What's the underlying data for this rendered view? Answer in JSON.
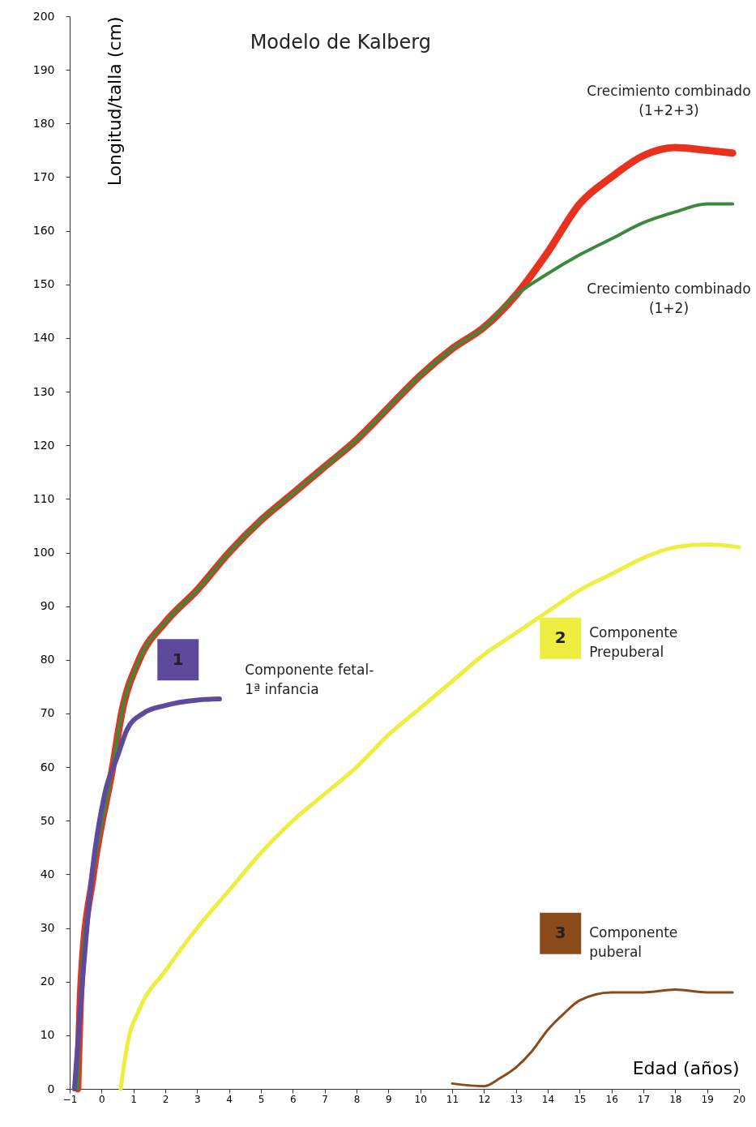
{
  "chart_data": {
    "type": "line",
    "title": "Modelo de Kalberg",
    "xlabel": "Edad (años)",
    "ylabel": "Longitud/talla (cm)",
    "xlim": [
      -1,
      20
    ],
    "ylim": [
      0,
      200
    ],
    "xticks": [
      -1,
      0,
      1,
      2,
      3,
      4,
      5,
      6,
      7,
      8,
      9,
      10,
      11,
      12,
      13,
      14,
      15,
      16,
      17,
      18,
      19,
      20
    ],
    "yticks": [
      0,
      10,
      20,
      30,
      40,
      50,
      60,
      70,
      80,
      90,
      100,
      110,
      120,
      130,
      140,
      150,
      160,
      170,
      180,
      190,
      200
    ],
    "grid": false,
    "legend": false,
    "marker": "none",
    "line_style": "solid",
    "series": [
      {
        "name": "Crecimiento combinado\n(1+2+3)",
        "color": "#e8321e",
        "x": [
          -0.75,
          -0.64,
          -0.26,
          0.35,
          0.63,
          1.18,
          2,
          3,
          4,
          5,
          6,
          7,
          8,
          9,
          10,
          11,
          12,
          13,
          14,
          15,
          16,
          17,
          18,
          19,
          19.8
        ],
        "values": [
          0,
          20,
          40,
          60,
          70,
          80,
          87,
          93,
          100,
          106,
          111,
          116,
          121,
          127,
          133,
          138,
          142,
          148,
          156,
          165,
          170,
          174,
          175.5,
          175,
          174.5
        ]
      },
      {
        "name": "Crecimiento combinado\n(1+2)",
        "color": "#3a8a3a",
        "x": [
          -0.75,
          -0.64,
          -0.26,
          0.35,
          0.63,
          1.18,
          2,
          3,
          4,
          5,
          6,
          7,
          8,
          9,
          10,
          11,
          12,
          13,
          14,
          15,
          16,
          17,
          18,
          19,
          19.8
        ],
        "values": [
          0,
          20,
          40,
          60,
          70,
          80,
          87,
          93,
          100,
          106,
          111,
          116,
          121,
          127,
          133,
          138,
          142,
          148,
          152,
          155.5,
          158.5,
          161.5,
          163.5,
          165,
          165
        ]
      },
      {
        "name": "Componente fetal-\n1ª infancia",
        "color": "#5e4a9c",
        "x": [
          -0.85,
          -0.6,
          -0.3,
          0.1,
          0.5,
          0.8,
          1.3,
          2,
          3,
          3.7
        ],
        "values": [
          0,
          20,
          40,
          55,
          62,
          67,
          70,
          71.5,
          72.5,
          72.7
        ]
      },
      {
        "name": "Componente\nPrepuberal",
        "color": "#eeee40",
        "x": [
          0.6,
          0.8,
          1.2,
          2,
          3,
          4,
          5,
          6,
          7,
          8,
          9,
          10,
          11,
          12,
          13,
          14,
          15,
          16,
          17,
          18,
          19,
          20
        ],
        "values": [
          0,
          8,
          15,
          22,
          30,
          37,
          44,
          50,
          55,
          60,
          66,
          71,
          76,
          81,
          85,
          89,
          93,
          96,
          99,
          101,
          101.5,
          101
        ]
      },
      {
        "name": "Componente\npuberal",
        "color": "#8b4a1a",
        "x": [
          11,
          12,
          12.5,
          13,
          13.5,
          14,
          14.5,
          15,
          16,
          17,
          18,
          19,
          19.8
        ],
        "values": [
          1,
          0.5,
          2,
          4,
          7,
          11,
          14,
          16.5,
          18,
          18,
          18.5,
          18,
          18
        ]
      }
    ],
    "annotations": [
      "1",
      "2",
      "3"
    ]
  }
}
